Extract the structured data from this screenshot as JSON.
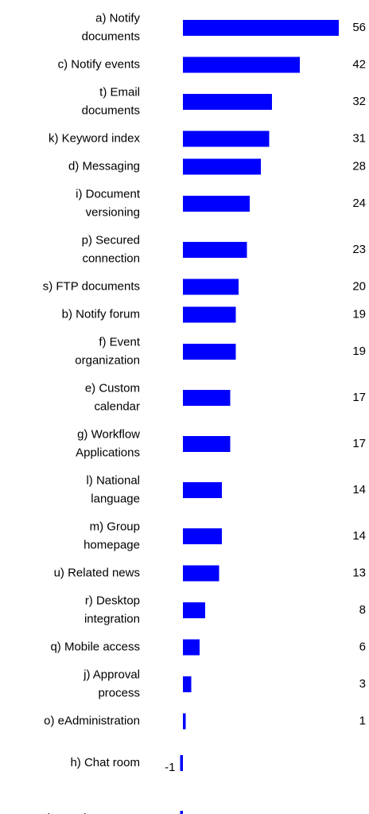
{
  "chart_data": {
    "type": "hbar",
    "color": "#0000ff",
    "categories": [
      [
        "a) Notify",
        "documents"
      ],
      [
        "c) Notify events"
      ],
      [
        "t) Email",
        "documents"
      ],
      [
        "k) Keyword index"
      ],
      [
        "d) Messaging"
      ],
      [
        "i) Document",
        "versioning"
      ],
      [
        "p) Secured",
        "connection"
      ],
      [
        "s) FTP documents"
      ],
      [
        "b) Notify forum"
      ],
      [
        "f) Event",
        "organization"
      ],
      [
        "e) Custom",
        "calendar"
      ],
      [
        "g) Workflow",
        "Applications"
      ],
      [
        "l) National",
        "language"
      ],
      [
        "m) Group",
        "homepage"
      ],
      [
        "u) Related news"
      ],
      [
        "r) Desktop",
        "integration"
      ],
      [
        "q) Mobile access"
      ],
      [
        "j) Approval",
        "process"
      ],
      [
        "o) eAdministration"
      ],
      [
        "h) Chat room"
      ],
      [
        "n) User homepage"
      ]
    ],
    "values": [
      56,
      42,
      32,
      31,
      28,
      24,
      23,
      20,
      19,
      19,
      17,
      17,
      14,
      14,
      13,
      8,
      6,
      3,
      1,
      -1,
      -1
    ]
  }
}
